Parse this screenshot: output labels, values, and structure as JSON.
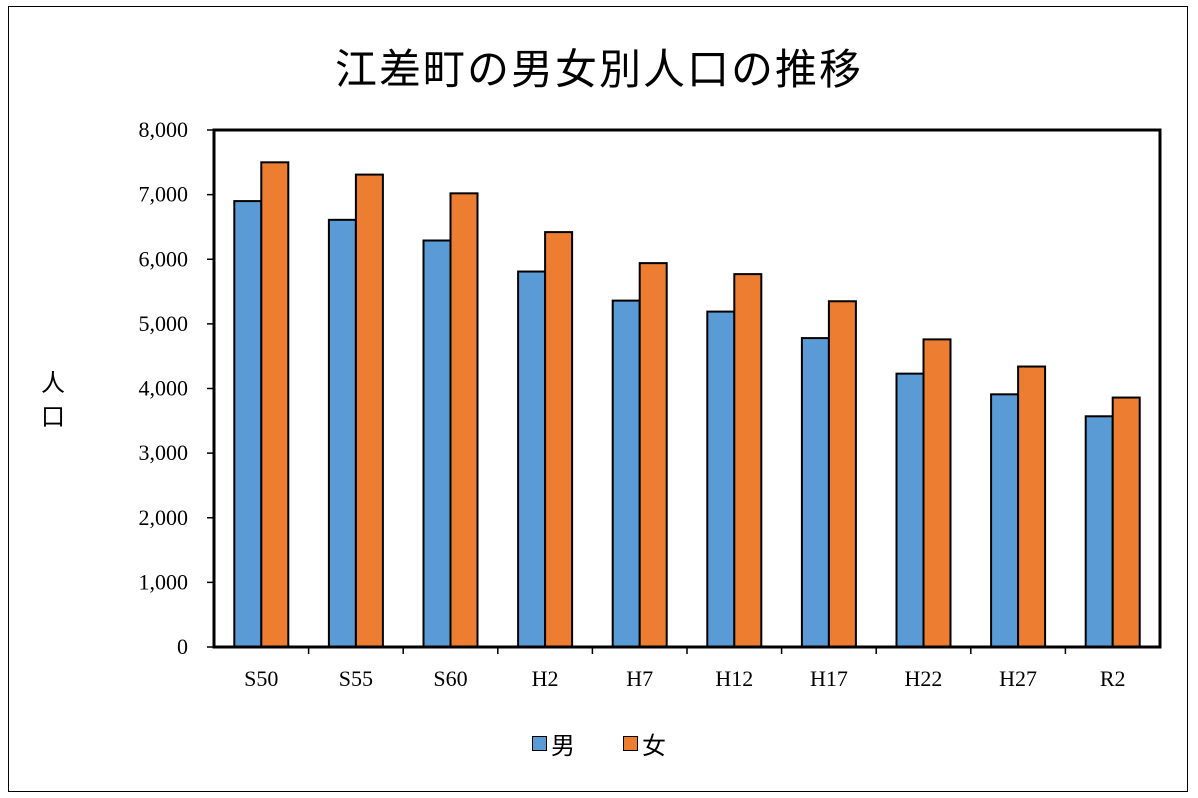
{
  "chart_data": {
    "type": "bar",
    "title": "江差町の男女別人口の推移",
    "ylabel": "人口",
    "ylabel_chars": [
      "人",
      "口"
    ],
    "xlabel": "",
    "ylim": [
      0,
      8000
    ],
    "ytick_step": 1000,
    "yticks": [
      "0",
      "1,000",
      "2,000",
      "3,000",
      "4,000",
      "5,000",
      "6,000",
      "7,000",
      "8,000"
    ],
    "categories": [
      "S50",
      "S55",
      "S60",
      "H2",
      "H7",
      "H12",
      "H17",
      "H22",
      "H27",
      "R2"
    ],
    "series": [
      {
        "name": "男",
        "color": "#5B9BD5",
        "values": [
          6900,
          6610,
          6290,
          5810,
          5360,
          5190,
          4780,
          4230,
          3910,
          3570
        ]
      },
      {
        "name": "女",
        "color": "#ED7D31",
        "values": [
          7500,
          7310,
          7020,
          6420,
          5940,
          5770,
          5350,
          4760,
          4340,
          3860
        ]
      }
    ],
    "grid": false,
    "legend_position": "bottom"
  }
}
